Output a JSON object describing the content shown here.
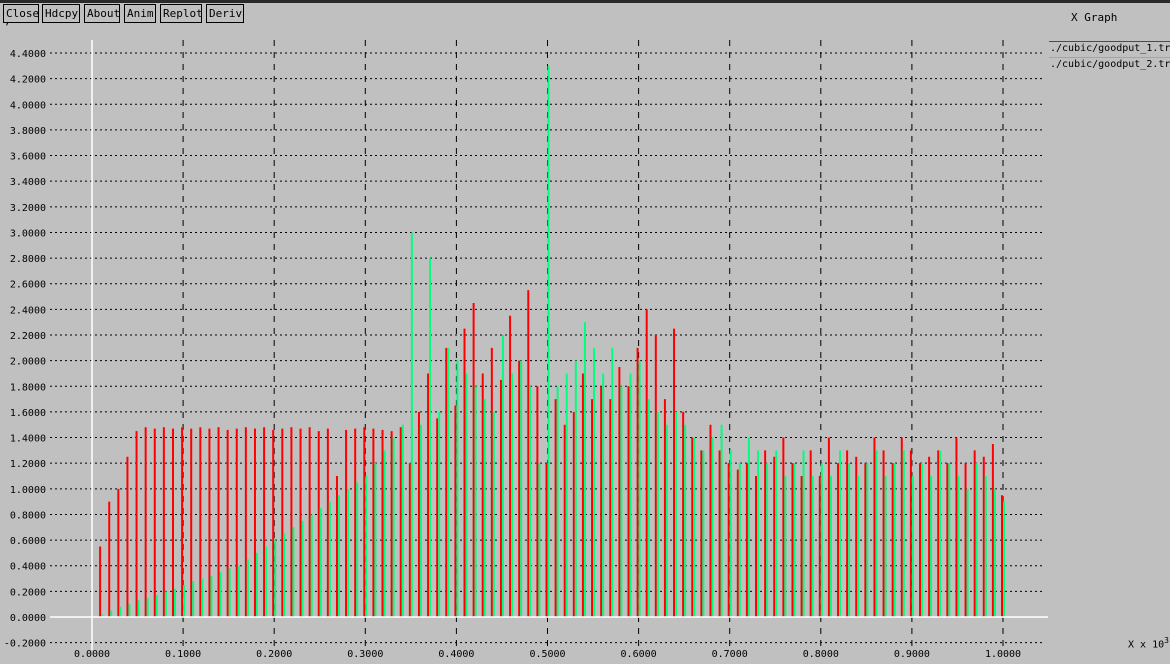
{
  "toolbar": {
    "buttons": [
      "Close",
      "Hdcpy",
      "About",
      "Anim",
      "Replot",
      "Deriv"
    ]
  },
  "window": {
    "title": "X Graph"
  },
  "legend": [
    {
      "name": "./cubic/goodput_1.tr",
      "color": "#ff0000"
    },
    {
      "name": "./cubic/goodput_2.tr",
      "color": "#00ff7f"
    }
  ],
  "axis_unit": {
    "prefix": "X x 10",
    "exponent": "3"
  },
  "chart_data": {
    "type": "bar",
    "x_ticks": [
      "0.0000",
      "0.1000",
      "0.2000",
      "0.3000",
      "0.4000",
      "0.5000",
      "0.6000",
      "0.7000",
      "0.8000",
      "0.9000",
      "1.0000"
    ],
    "y_ticks": [
      "-0.2000",
      "0.0000",
      "0.2000",
      "0.4000",
      "0.6000",
      "0.8000",
      "1.0000",
      "1.2000",
      "1.4000",
      "1.6000",
      "1.8000",
      "2.0000",
      "2.2000",
      "2.4000",
      "2.6000",
      "2.8000",
      "3.0000",
      "3.2000",
      "3.4000",
      "3.6000",
      "3.8000",
      "4.0000",
      "4.2000",
      "4.4000"
    ],
    "xlim": [
      0,
      1.0
    ],
    "ylim": [
      -0.2,
      4.5
    ],
    "grid": true,
    "series": [
      {
        "name": "./cubic/goodput_1.tr",
        "color": "#ff0000",
        "x": [
          0.01,
          0.02,
          0.03,
          0.04,
          0.05,
          0.06,
          0.07,
          0.08,
          0.09,
          0.1,
          0.11,
          0.12,
          0.13,
          0.14,
          0.15,
          0.16,
          0.17,
          0.18,
          0.19,
          0.2,
          0.21,
          0.22,
          0.23,
          0.24,
          0.25,
          0.26,
          0.27,
          0.28,
          0.29,
          0.3,
          0.31,
          0.32,
          0.33,
          0.34,
          0.35,
          0.36,
          0.37,
          0.38,
          0.39,
          0.4,
          0.41,
          0.42,
          0.43,
          0.44,
          0.45,
          0.46,
          0.47,
          0.48,
          0.49,
          0.5,
          0.51,
          0.52,
          0.53,
          0.54,
          0.55,
          0.56,
          0.57,
          0.58,
          0.59,
          0.6,
          0.61,
          0.62,
          0.63,
          0.64,
          0.65,
          0.66,
          0.67,
          0.68,
          0.69,
          0.7,
          0.71,
          0.72,
          0.73,
          0.74,
          0.75,
          0.76,
          0.77,
          0.78,
          0.79,
          0.8,
          0.81,
          0.82,
          0.83,
          0.84,
          0.85,
          0.86,
          0.87,
          0.88,
          0.89,
          0.9,
          0.91,
          0.92,
          0.93,
          0.94,
          0.95,
          0.96,
          0.97,
          0.98,
          0.99,
          1.0
        ],
        "values": [
          0.55,
          0.9,
          1.0,
          1.25,
          1.45,
          1.48,
          1.47,
          1.48,
          1.47,
          1.48,
          1.47,
          1.48,
          1.47,
          1.48,
          1.46,
          1.47,
          1.48,
          1.47,
          1.48,
          1.46,
          1.47,
          1.48,
          1.47,
          1.48,
          1.45,
          1.47,
          1.1,
          1.46,
          1.47,
          1.48,
          1.47,
          1.46,
          1.45,
          1.48,
          1.2,
          1.6,
          1.9,
          1.55,
          2.1,
          1.65,
          2.25,
          2.45,
          1.9,
          2.1,
          1.85,
          2.35,
          2.0,
          2.55,
          1.8,
          1.2,
          1.7,
          1.5,
          1.6,
          1.9,
          1.7,
          1.8,
          1.7,
          1.95,
          1.8,
          2.1,
          2.4,
          2.2,
          1.7,
          2.25,
          1.6,
          1.4,
          1.3,
          1.5,
          1.3,
          1.2,
          1.15,
          1.2,
          1.1,
          1.3,
          1.25,
          1.4,
          1.2,
          1.1,
          1.3,
          1.1,
          1.4,
          1.2,
          1.3,
          1.25,
          1.2,
          1.4,
          1.3,
          1.2,
          1.4,
          1.3,
          1.2,
          1.25,
          1.3,
          1.2,
          1.4,
          1.2,
          1.3,
          1.25,
          1.35,
          0.95
        ]
      },
      {
        "name": "./cubic/goodput_2.tr",
        "color": "#00ff7f",
        "x": [
          0.01,
          0.02,
          0.03,
          0.04,
          0.05,
          0.06,
          0.07,
          0.08,
          0.09,
          0.1,
          0.11,
          0.12,
          0.13,
          0.14,
          0.15,
          0.16,
          0.17,
          0.18,
          0.19,
          0.2,
          0.21,
          0.22,
          0.23,
          0.24,
          0.25,
          0.26,
          0.27,
          0.28,
          0.29,
          0.3,
          0.31,
          0.32,
          0.33,
          0.34,
          0.35,
          0.36,
          0.37,
          0.38,
          0.39,
          0.4,
          0.41,
          0.42,
          0.43,
          0.44,
          0.45,
          0.46,
          0.47,
          0.48,
          0.49,
          0.5,
          0.51,
          0.52,
          0.53,
          0.54,
          0.55,
          0.56,
          0.57,
          0.58,
          0.59,
          0.6,
          0.61,
          0.62,
          0.63,
          0.64,
          0.65,
          0.66,
          0.67,
          0.68,
          0.69,
          0.7,
          0.71,
          0.72,
          0.73,
          0.74,
          0.75,
          0.76,
          0.77,
          0.78,
          0.79,
          0.8,
          0.81,
          0.82,
          0.83,
          0.84,
          0.85,
          0.86,
          0.87,
          0.88,
          0.89,
          0.9,
          0.91,
          0.92,
          0.93,
          0.94,
          0.95,
          0.96,
          0.97,
          0.98,
          0.99,
          1.0
        ],
        "values": [
          0.02,
          0.05,
          0.08,
          0.1,
          0.13,
          0.15,
          0.17,
          0.2,
          0.22,
          0.25,
          0.28,
          0.3,
          0.32,
          0.35,
          0.38,
          0.4,
          0.45,
          0.5,
          0.55,
          0.6,
          0.65,
          0.7,
          0.75,
          0.8,
          0.85,
          0.9,
          0.95,
          1.0,
          1.05,
          1.1,
          1.2,
          1.3,
          1.4,
          1.5,
          3.0,
          1.5,
          2.8,
          1.6,
          2.1,
          2.0,
          1.9,
          1.8,
          1.7,
          1.6,
          2.2,
          1.9,
          2.0,
          1.8,
          1.2,
          4.3,
          1.8,
          1.9,
          2.0,
          2.3,
          2.1,
          1.9,
          2.1,
          1.8,
          1.9,
          2.0,
          1.7,
          1.6,
          1.5,
          1.6,
          1.5,
          1.4,
          1.3,
          1.4,
          1.5,
          1.3,
          1.2,
          1.4,
          1.3,
          1.2,
          1.3,
          1.1,
          1.2,
          1.3,
          1.1,
          1.2,
          1.1,
          1.3,
          1.2,
          1.1,
          1.2,
          1.3,
          1.1,
          1.2,
          1.3,
          1.1,
          1.2,
          1.1,
          1.3,
          1.2,
          1.1,
          1.0,
          1.2,
          1.1,
          1.0,
          0.9
        ]
      }
    ]
  }
}
